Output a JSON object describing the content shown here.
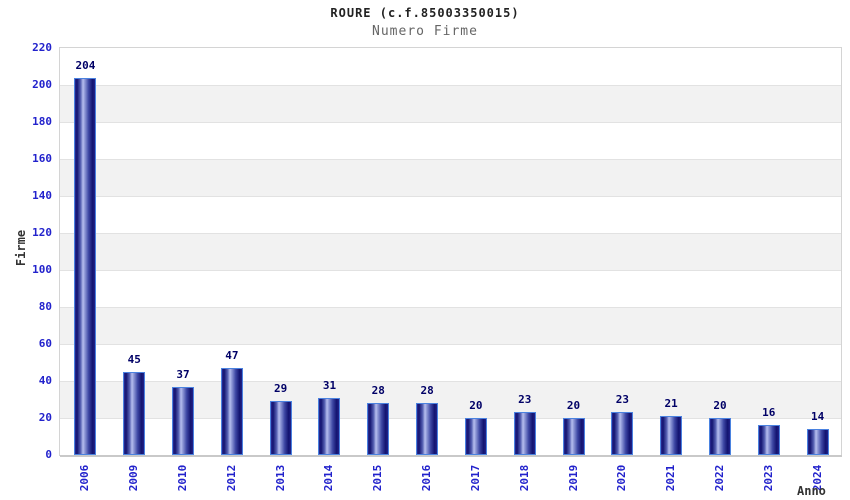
{
  "chart_data": {
    "type": "bar",
    "title": "ROURE (c.f.85003350015)",
    "subtitle": "Numero Firme",
    "xlabel": "Anno",
    "ylabel": "Firme",
    "categories": [
      "2006",
      "2009",
      "2010",
      "2012",
      "2013",
      "2014",
      "2015",
      "2016",
      "2017",
      "2018",
      "2019",
      "2020",
      "2021",
      "2022",
      "2023",
      "2024"
    ],
    "values": [
      204,
      45,
      37,
      47,
      29,
      31,
      28,
      28,
      20,
      23,
      20,
      23,
      21,
      20,
      16,
      14
    ],
    "ylim": [
      0,
      220
    ],
    "ytick_interval": 20,
    "yticks": [
      0,
      20,
      40,
      60,
      80,
      100,
      120,
      140,
      160,
      180,
      200,
      220
    ],
    "grid": "horizontal-bands",
    "legend": "none",
    "value_labels_shown": true,
    "colors": {
      "title": "#222222",
      "subtitle": "#666666",
      "axis_title": "#333333",
      "tick_label": "#2222cc",
      "value_label": "#000066",
      "bar_dark": "#13136f",
      "bar_light": "#b6beee",
      "bar_border": "#4a82e0",
      "band_gray": "#f2f2f2",
      "band_white": "#ffffff",
      "gridline": "#e2e2e2",
      "plot_border": "#d4d4d4"
    }
  }
}
